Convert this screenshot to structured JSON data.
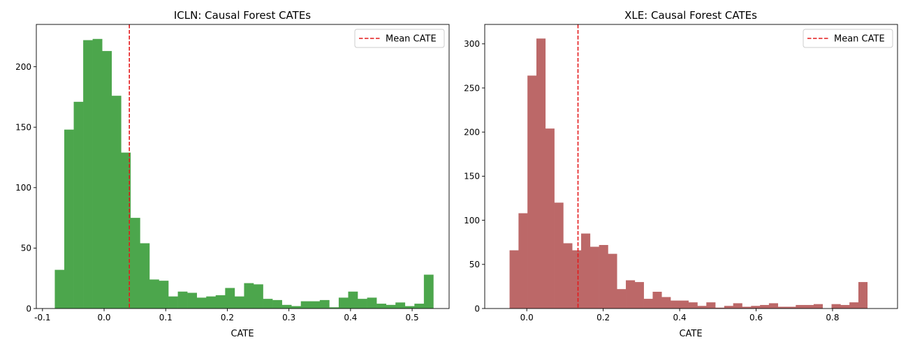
{
  "chart_data": [
    {
      "type": "bar",
      "title": "ICLN: Causal Forest CATEs",
      "xlabel": "CATE",
      "ylabel": "",
      "color": "#4ca64c",
      "mean_color": "#e41a1c",
      "mean_value": 0.041,
      "legend_label": "Mean CATE",
      "legend_position": "top-right",
      "xlim": [
        -0.11,
        0.56
      ],
      "ylim": [
        0,
        235
      ],
      "xticks": [
        -0.1,
        0.0,
        0.1,
        0.2,
        0.3,
        0.4,
        0.5
      ],
      "xtick_labels": [
        "-0.1",
        "0.0",
        "0.1",
        "0.2",
        "0.3",
        "0.4",
        "0.5"
      ],
      "yticks": [
        0,
        50,
        100,
        150,
        200
      ],
      "ytick_labels": [
        "0",
        "50",
        "100",
        "150",
        "200"
      ],
      "bin_start": -0.08,
      "bin_width": 0.01536,
      "counts": [
        32,
        148,
        171,
        222,
        223,
        213,
        176,
        129,
        75,
        54,
        24,
        23,
        10,
        14,
        13,
        9,
        10,
        11,
        17,
        10,
        21,
        20,
        8,
        7,
        3,
        2,
        6,
        6,
        7,
        1,
        9,
        14,
        8,
        9,
        4,
        3,
        5,
        2,
        4,
        28
      ]
    },
    {
      "type": "bar",
      "title": "XLE: Causal Forest CATEs",
      "xlabel": "CATE",
      "ylabel": "",
      "color": "#bc6868",
      "mean_color": "#e41a1c",
      "mean_value": 0.134,
      "legend_label": "Mean CATE",
      "legend_position": "top-right",
      "xlim": [
        -0.11,
        0.97
      ],
      "ylim": [
        0,
        322
      ],
      "xticks": [
        0.0,
        0.2,
        0.4,
        0.6,
        0.8
      ],
      "xtick_labels": [
        "0.0",
        "0.2",
        "0.4",
        "0.6",
        "0.8"
      ],
      "yticks": [
        0,
        50,
        100,
        150,
        200,
        250,
        300
      ],
      "ytick_labels": [
        "0",
        "50",
        "100",
        "150",
        "200",
        "250",
        "300"
      ],
      "bin_start": -0.045,
      "bin_width": 0.0234,
      "counts": [
        66,
        108,
        264,
        306,
        204,
        120,
        74,
        66,
        85,
        70,
        72,
        62,
        22,
        32,
        30,
        11,
        19,
        13,
        9,
        9,
        7,
        3,
        7,
        1,
        3,
        6,
        2,
        3,
        4,
        6,
        2,
        2,
        4,
        4,
        5,
        0,
        5,
        4,
        7,
        30
      ]
    }
  ]
}
